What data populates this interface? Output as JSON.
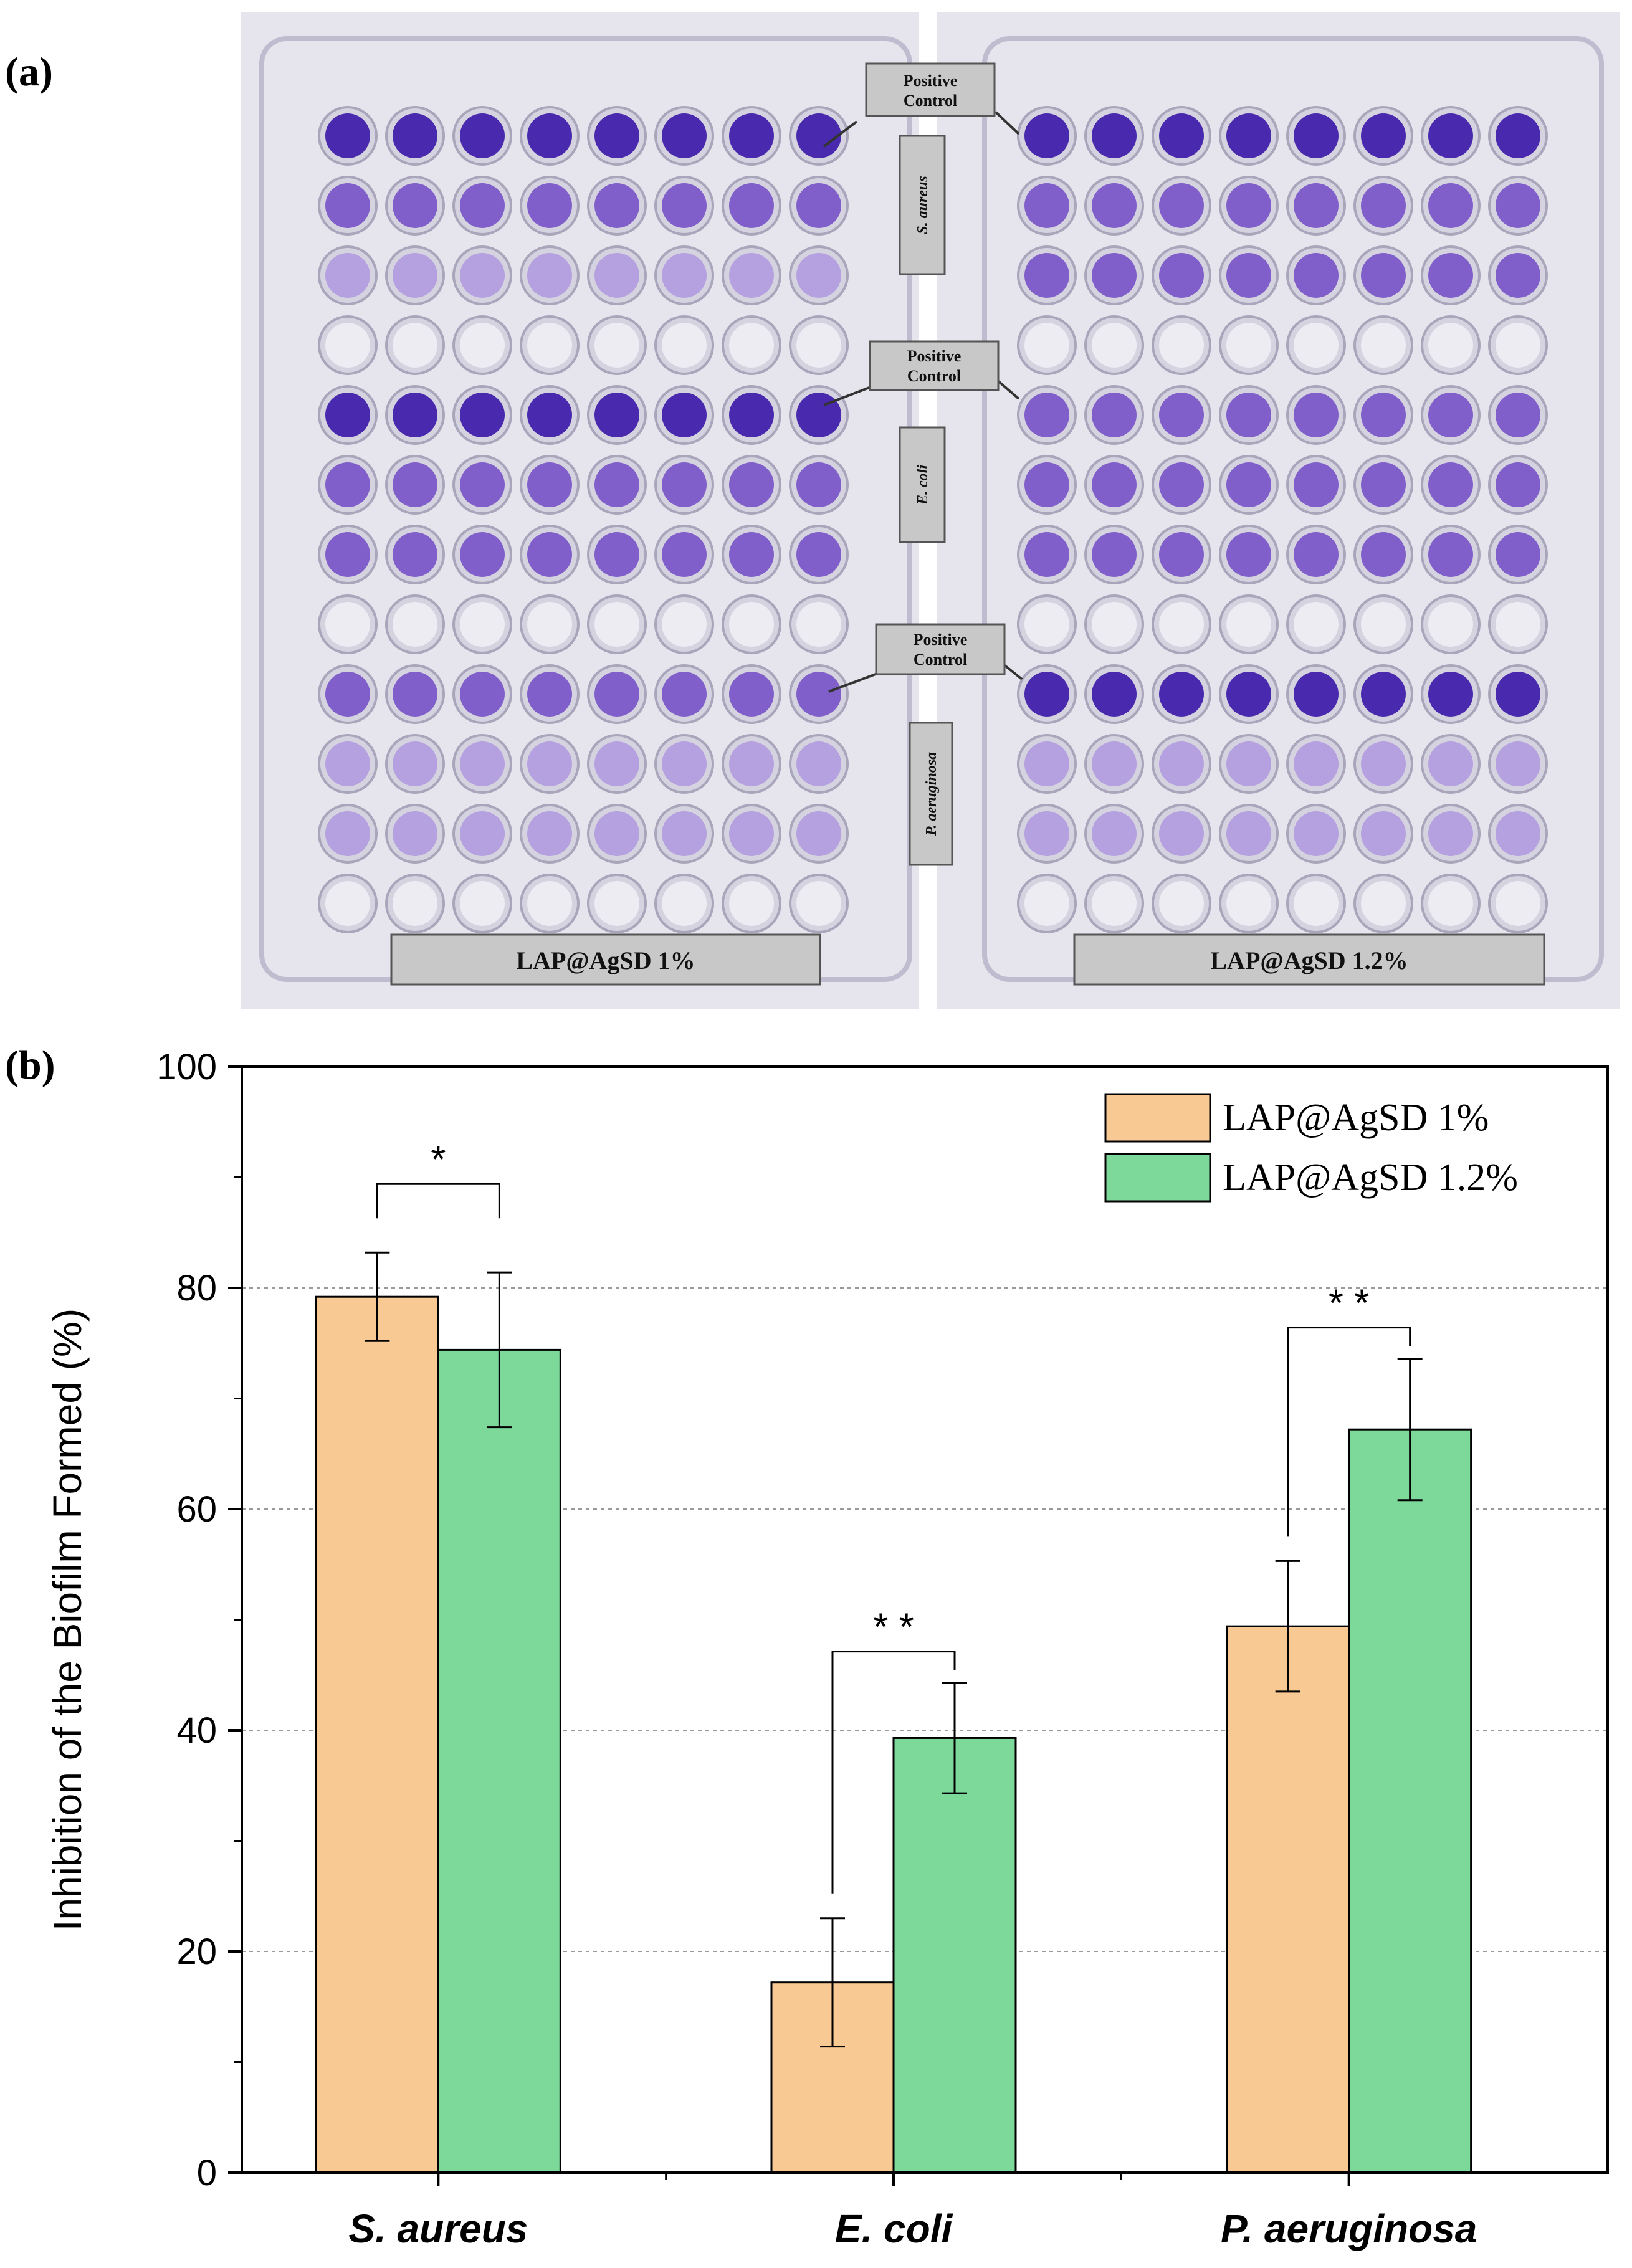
{
  "panels": {
    "a_label": "(a)",
    "b_label": "(b)"
  },
  "plate_photo": {
    "positive_control_line1": "Positive",
    "positive_control_line2": "Control",
    "bacteria_tags": [
      "S. aureus",
      "E. coli",
      "P. aeruginosa"
    ],
    "left_plate_caption": "LAP@AgSD 1%",
    "right_plate_caption": "LAP@AgSD 1.2%",
    "colors": {
      "plate_bg": "#e4e2ec",
      "well_dark": "#3d1aa8",
      "well_medium": "#7a55c8",
      "well_light": "#b29be0",
      "well_clear": "#eeeef3",
      "tag_bg": "#c8c8c8"
    }
  },
  "chart_data": {
    "type": "bar",
    "title": "",
    "xlabel": "",
    "ylabel": "Inhibition of the Biofilm Formed (%)",
    "ylim": [
      0,
      100
    ],
    "yticks": [
      0,
      20,
      40,
      60,
      80,
      100
    ],
    "grid": true,
    "legend_position": "top-right",
    "categories": [
      "S. aureus",
      "E. coli",
      "P. aeruginosa"
    ],
    "series": [
      {
        "name": "LAP@AgSD 1%",
        "color": "#f9c994",
        "values": [
          79.2,
          17.2,
          49.4
        ],
        "errors": [
          4.0,
          5.8,
          5.9
        ]
      },
      {
        "name": "LAP@AgSD 1.2%",
        "color": "#7dd99a",
        "values": [
          74.4,
          39.3,
          67.2
        ],
        "errors": [
          7.0,
          5.0,
          6.4
        ]
      }
    ],
    "significance": [
      "*",
      "* *",
      "* *"
    ]
  }
}
